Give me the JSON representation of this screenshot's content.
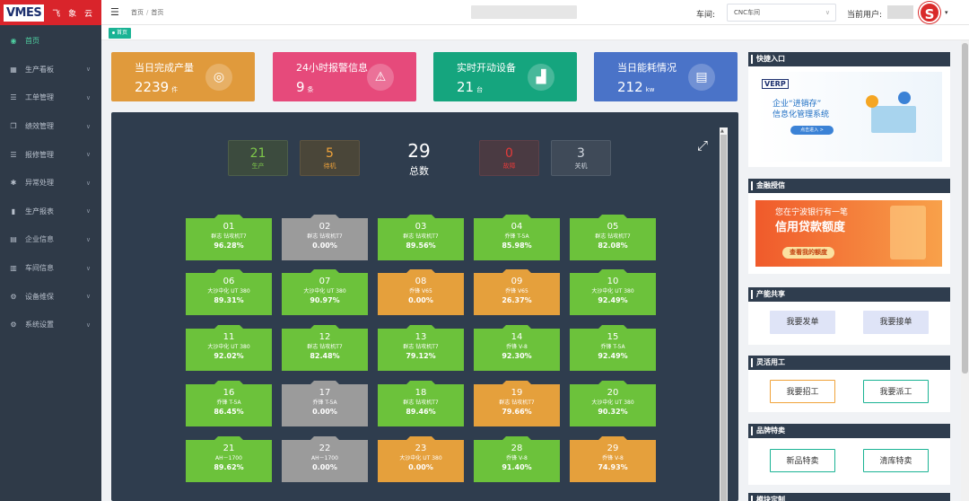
{
  "brand": {
    "logo": "VMES",
    "name": "飞 象 云"
  },
  "sidebar": {
    "items": [
      {
        "label": "首页",
        "icon": "dashboard-icon",
        "active": true
      },
      {
        "label": "生产看板",
        "icon": "monitor-icon"
      },
      {
        "label": "工单管理",
        "icon": "list-icon"
      },
      {
        "label": "绩效管理",
        "icon": "copy-icon"
      },
      {
        "label": "报修管理",
        "icon": "menu-icon"
      },
      {
        "label": "异常处理",
        "icon": "bug-icon"
      },
      {
        "label": "生产报表",
        "icon": "bar-chart-icon"
      },
      {
        "label": "企业信息",
        "icon": "building-icon"
      },
      {
        "label": "车间信息",
        "icon": "factory-icon"
      },
      {
        "label": "设备维保",
        "icon": "gear-icon"
      },
      {
        "label": "系统设置",
        "icon": "settings-icon"
      }
    ]
  },
  "header": {
    "breadcrumb": [
      "首页",
      "首页"
    ],
    "workshop_label": "车间:",
    "workshop_value": "CNC车间",
    "user_label": "当前用户:",
    "avatar_letter": "S"
  },
  "tabs": [
    {
      "label": "首页"
    }
  ],
  "cards": [
    {
      "title": "当日完成产量",
      "value": "2239",
      "unit": "件",
      "color": "#e09a3c",
      "icon": "antenna-icon"
    },
    {
      "title": "24小时报警信息",
      "value": "9",
      "unit": "条",
      "color": "#e64a7b",
      "icon": "alarm-icon"
    },
    {
      "title": "实时开动设备",
      "value": "21",
      "unit": "台",
      "color": "#15a57e",
      "icon": "chart-icon"
    },
    {
      "title": "当日能耗情况",
      "value": "212",
      "unit": "kw",
      "color": "#4a73c8",
      "icon": "document-icon"
    }
  ],
  "status": {
    "production": {
      "value": "21",
      "label": "生产",
      "color": "#7ec84a"
    },
    "standby": {
      "value": "5",
      "label": "待机",
      "color": "#f0a33a"
    },
    "total": {
      "value": "29",
      "label": "总数"
    },
    "fault": {
      "value": "0",
      "label": "故障",
      "color": "#e23a3a"
    },
    "off": {
      "value": "3",
      "label": "关机",
      "color": "#b0b8c4"
    }
  },
  "machines": [
    {
      "id": "01",
      "model": "群志 钻攻机T7",
      "pct": "96.28%",
      "state": "green"
    },
    {
      "id": "02",
      "model": "群志 钻攻机T7",
      "pct": "0.00%",
      "state": "gray"
    },
    {
      "id": "03",
      "model": "群志 钻攻机T7",
      "pct": "89.56%",
      "state": "green"
    },
    {
      "id": "04",
      "model": "乔锋 T-5A",
      "pct": "85.98%",
      "state": "green"
    },
    {
      "id": "05",
      "model": "群志 钻攻机T7",
      "pct": "82.08%",
      "state": "green"
    },
    {
      "id": "06",
      "model": "大沙中化 UT 380",
      "pct": "89.31%",
      "state": "green"
    },
    {
      "id": "07",
      "model": "大沙中化 UT 380",
      "pct": "90.97%",
      "state": "green"
    },
    {
      "id": "08",
      "model": "乔锋 V65",
      "pct": "0.00%",
      "state": "orange"
    },
    {
      "id": "09",
      "model": "乔锋 V65",
      "pct": "26.37%",
      "state": "orange"
    },
    {
      "id": "10",
      "model": "大沙中化 UT 380",
      "pct": "92.49%",
      "state": "green"
    },
    {
      "id": "11",
      "model": "大沙中化 UT 380",
      "pct": "92.02%",
      "state": "green"
    },
    {
      "id": "12",
      "model": "群志 钻攻机T7",
      "pct": "82.48%",
      "state": "green"
    },
    {
      "id": "13",
      "model": "群志 钻攻机T7",
      "pct": "79.12%",
      "state": "green"
    },
    {
      "id": "14",
      "model": "乔锋 V-8",
      "pct": "92.30%",
      "state": "green"
    },
    {
      "id": "15",
      "model": "乔锋 T-5A",
      "pct": "92.49%",
      "state": "green"
    },
    {
      "id": "16",
      "model": "乔锋 T-5A",
      "pct": "86.45%",
      "state": "green"
    },
    {
      "id": "17",
      "model": "乔锋 T-5A",
      "pct": "0.00%",
      "state": "gray"
    },
    {
      "id": "18",
      "model": "群志 钻攻机T7",
      "pct": "89.46%",
      "state": "green"
    },
    {
      "id": "19",
      "model": "群志 钻攻机T7",
      "pct": "79.66%",
      "state": "orange"
    },
    {
      "id": "20",
      "model": "大沙中化 UT 380",
      "pct": "90.32%",
      "state": "green"
    },
    {
      "id": "21",
      "model": "AH－1700",
      "pct": "89.62%",
      "state": "green"
    },
    {
      "id": "22",
      "model": "AH－1700",
      "pct": "0.00%",
      "state": "gray"
    },
    {
      "id": "23",
      "model": "大沙中化 UT 380",
      "pct": "0.00%",
      "state": "orange"
    },
    {
      "id": "28",
      "model": "乔锋 V-8",
      "pct": "91.40%",
      "state": "green"
    },
    {
      "id": "29",
      "model": "乔锋 V-8",
      "pct": "74.93%",
      "state": "orange"
    }
  ],
  "right": {
    "quick": {
      "title": "快捷入口",
      "banner_logo": "VERP",
      "banner_line1": "企业“进销存”",
      "banner_line2": "信息化管理系统",
      "banner_btn": "点击进入 >"
    },
    "finance": {
      "title": "金融授信",
      "line1": "您在宁波银行有一笔",
      "line2": "信用贷款额度",
      "btn": "查看我的额度"
    },
    "capacity": {
      "title": "产能共享",
      "btn1": "我要发单",
      "btn2": "我要接单"
    },
    "labor": {
      "title": "灵活用工",
      "btn1": "我要招工",
      "btn2": "我要派工"
    },
    "sale": {
      "title": "品牌特卖",
      "btn1": "新品特卖",
      "btn2": "清库特卖"
    },
    "custom": {
      "title": "模块定制"
    }
  }
}
